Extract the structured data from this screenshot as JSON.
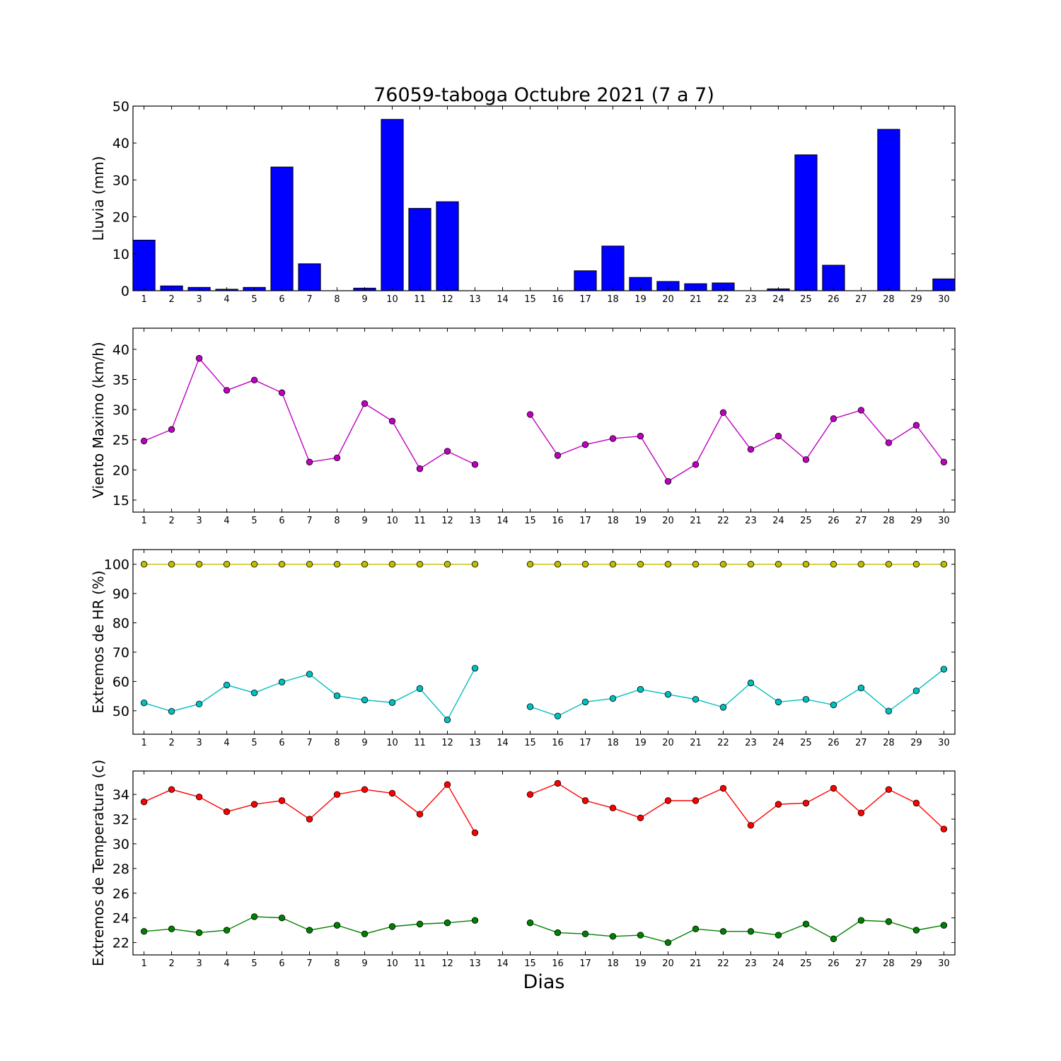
{
  "chart_data": [
    {
      "type": "bar",
      "title": "76059-taboga Octubre 2021  (7 a 7)",
      "xlabel": "",
      "ylabel": "Lluvia (mm)",
      "ylim": [
        0,
        50
      ],
      "yticks": [
        0,
        10,
        20,
        30,
        40,
        50
      ],
      "categories": [
        1,
        2,
        3,
        4,
        5,
        6,
        7,
        8,
        9,
        10,
        11,
        12,
        13,
        14,
        15,
        16,
        17,
        18,
        19,
        20,
        21,
        22,
        23,
        24,
        25,
        26,
        27,
        28,
        29,
        30
      ],
      "series": [
        {
          "color": "#0000ff",
          "values": [
            13.7,
            1.3,
            0.9,
            0.4,
            0.9,
            33.5,
            7.3,
            0,
            0.7,
            46.4,
            22.3,
            24.1,
            0,
            0,
            0,
            0,
            5.4,
            12.1,
            3.6,
            2.5,
            1.9,
            2.1,
            0,
            0.5,
            36.8,
            6.9,
            0,
            43.7,
            0,
            3.2
          ]
        }
      ],
      "grid": false
    },
    {
      "type": "line",
      "xlabel": "",
      "ylabel": "Viento Maximo (km/h)",
      "ylim": [
        13,
        43.5
      ],
      "yticks": [
        15,
        20,
        25,
        30,
        35,
        40
      ],
      "categories": [
        1,
        2,
        3,
        4,
        5,
        6,
        7,
        8,
        9,
        10,
        11,
        12,
        13,
        14,
        15,
        16,
        17,
        18,
        19,
        20,
        21,
        22,
        23,
        24,
        25,
        26,
        27,
        28,
        29,
        30
      ],
      "series": [
        {
          "color": "#bf00bf",
          "values": [
            24.8,
            26.7,
            38.5,
            33.2,
            34.9,
            32.8,
            21.3,
            22,
            31,
            28.1,
            20.2,
            23.1,
            20.9,
            null,
            29.2,
            22.4,
            24.2,
            25.2,
            25.6,
            18.1,
            20.9,
            29.5,
            23.4,
            25.6,
            21.7,
            28.5,
            29.9,
            24.5,
            27.4,
            21.3
          ]
        }
      ],
      "grid": false
    },
    {
      "type": "line",
      "xlabel": "",
      "ylabel": "Extremos de HR (%)",
      "ylim": [
        42,
        105
      ],
      "yticks": [
        50,
        60,
        70,
        80,
        90,
        100
      ],
      "categories": [
        1,
        2,
        3,
        4,
        5,
        6,
        7,
        8,
        9,
        10,
        11,
        12,
        13,
        14,
        15,
        16,
        17,
        18,
        19,
        20,
        21,
        22,
        23,
        24,
        25,
        26,
        27,
        28,
        29,
        30
      ],
      "series": [
        {
          "color": "#bfbf00",
          "values": [
            100,
            100,
            100,
            100,
            100,
            100,
            100,
            100,
            100,
            100,
            100,
            100,
            100,
            null,
            100,
            100,
            100,
            100,
            100,
            100,
            100,
            100,
            100,
            100,
            100,
            100,
            100,
            100,
            100,
            100
          ]
        },
        {
          "color": "#00bfbf",
          "values": [
            52.7,
            49.8,
            52.3,
            58.8,
            56.1,
            59.8,
            62.5,
            55.1,
            53.7,
            52.8,
            57.6,
            46.9,
            64.5,
            null,
            51.4,
            48.2,
            53,
            54.2,
            57.3,
            55.6,
            53.9,
            51.2,
            59.5,
            53,
            53.9,
            52,
            57.8,
            49.9,
            56.8,
            64.2
          ]
        }
      ],
      "grid": false
    },
    {
      "type": "line",
      "xlabel": "Dias",
      "ylabel": "Extremos de Temperatura (c)",
      "ylim": [
        21,
        35.9
      ],
      "yticks": [
        22,
        24,
        26,
        28,
        30,
        32,
        34
      ],
      "categories": [
        1,
        2,
        3,
        4,
        5,
        6,
        7,
        8,
        9,
        10,
        11,
        12,
        13,
        14,
        15,
        16,
        17,
        18,
        19,
        20,
        21,
        22,
        23,
        24,
        25,
        26,
        27,
        28,
        29,
        30
      ],
      "series": [
        {
          "color": "#ff0000",
          "values": [
            33.4,
            34.4,
            33.8,
            32.6,
            33.2,
            33.5,
            32,
            34,
            34.4,
            34.1,
            32.4,
            34.8,
            30.9,
            null,
            34,
            34.9,
            33.5,
            32.9,
            32.1,
            33.5,
            33.5,
            34.5,
            31.5,
            33.2,
            33.3,
            34.5,
            32.5,
            34.4,
            33.3,
            31.2
          ]
        },
        {
          "color": "#008000",
          "values": [
            22.9,
            23.1,
            22.8,
            23,
            24.1,
            24,
            23,
            23.4,
            22.7,
            23.3,
            23.5,
            23.6,
            23.8,
            null,
            23.6,
            22.8,
            22.7,
            22.5,
            22.6,
            22,
            23.1,
            22.9,
            22.9,
            22.6,
            23.5,
            22.3,
            23.8,
            23.7,
            23,
            23.4
          ]
        }
      ],
      "grid": false
    }
  ]
}
